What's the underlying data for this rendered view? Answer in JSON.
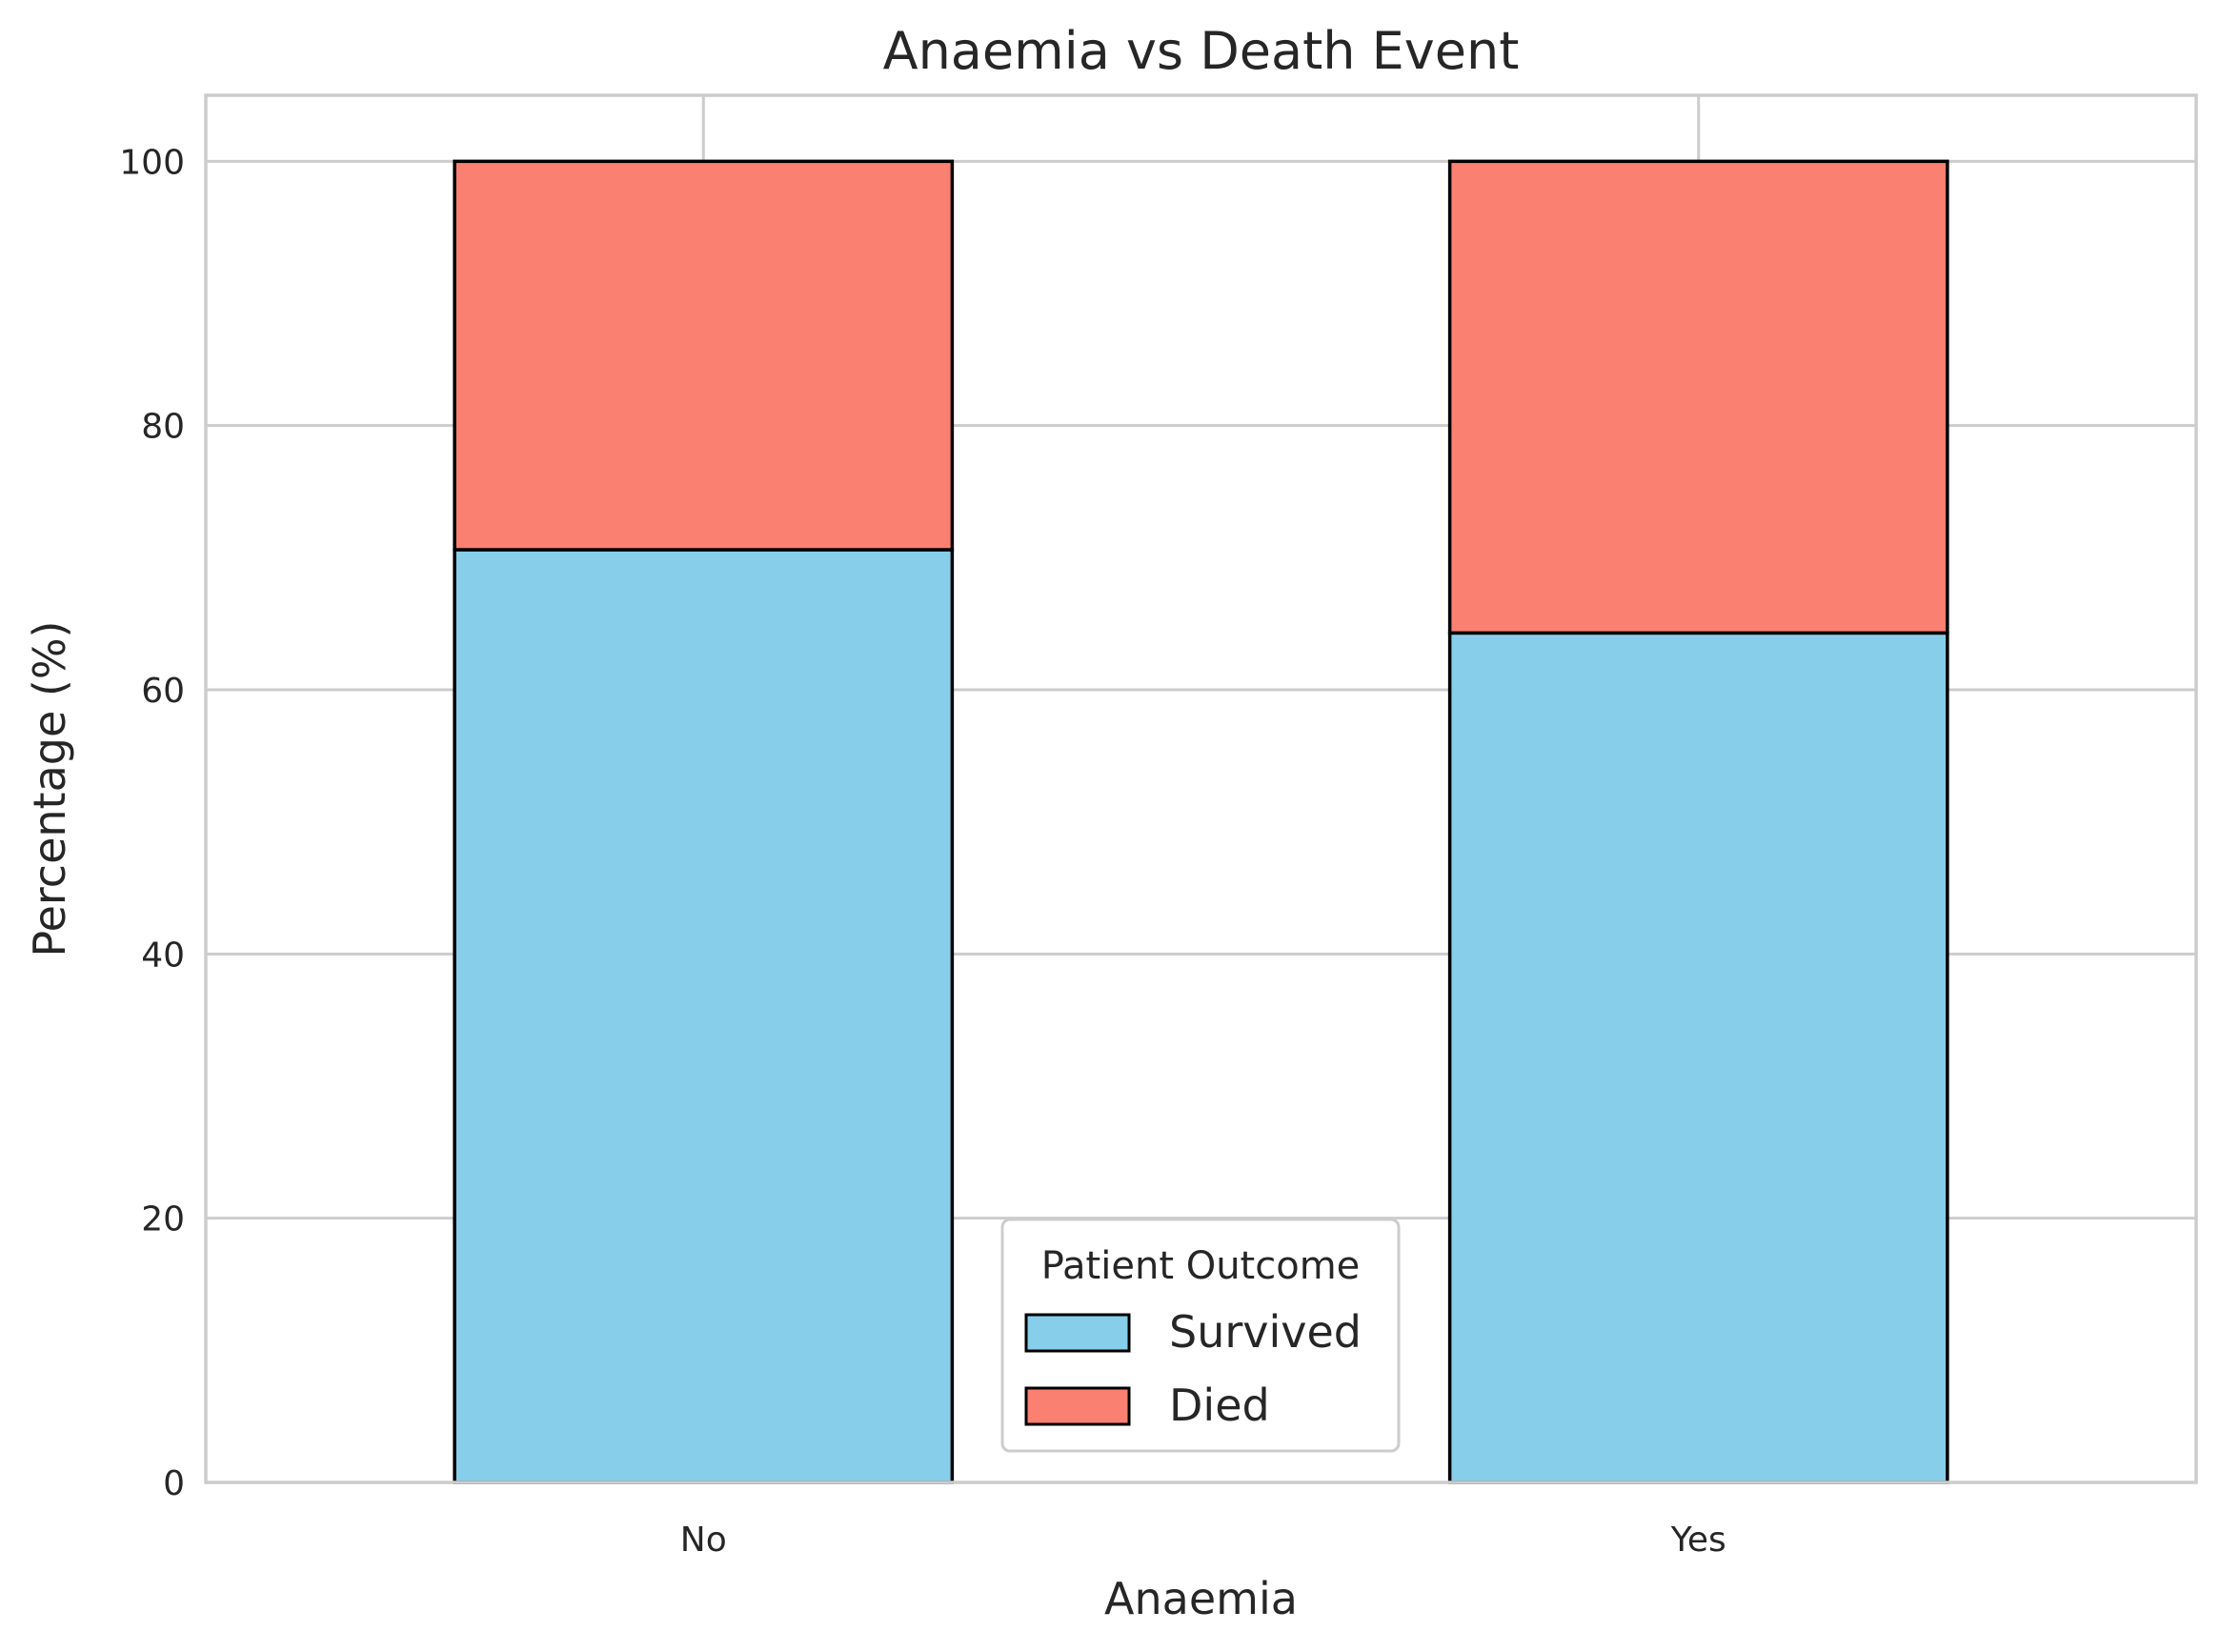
{
  "chart_data": {
    "type": "bar",
    "stacked": true,
    "title": "Anaemia vs Death Event",
    "xlabel": "Anaemia",
    "ylabel": "Percentage (%)",
    "categories": [
      "No",
      "Yes"
    ],
    "series": [
      {
        "name": "Survived",
        "values": [
          70.6,
          64.3
        ],
        "color": "#87CEEB"
      },
      {
        "name": "Died",
        "values": [
          29.4,
          35.7
        ],
        "color": "#FA8072"
      }
    ],
    "ylim": [
      0,
      105
    ],
    "yticks": [
      0,
      20,
      40,
      60,
      80,
      100
    ],
    "grid": true,
    "legend": {
      "title": "Patient Outcome",
      "placement": "lower-center"
    },
    "colors": {
      "grid": "#cccccc",
      "spine": "#cccccc",
      "bar_edge": "#000000",
      "text": "#262626"
    }
  }
}
